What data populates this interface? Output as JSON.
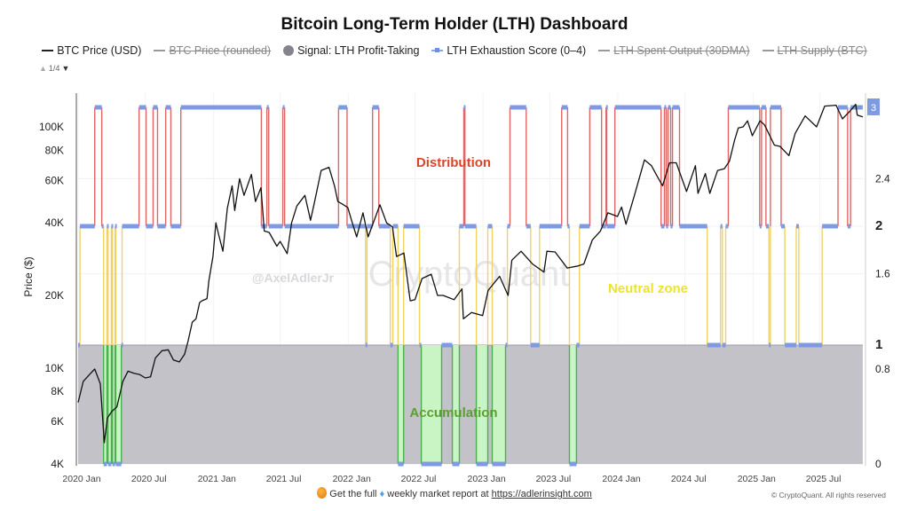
{
  "title": "Bitcoin Long-Term Holder (LTH) Dashboard",
  "legend": [
    {
      "label": "BTC Price (USD)",
      "marker": "line",
      "active": true
    },
    {
      "label": "BTC Price (rounded)",
      "marker": "line",
      "active": false
    },
    {
      "label": "Signal: LTH Profit-Taking",
      "marker": "circle",
      "active": true
    },
    {
      "label": "LTH Exhaustion Score (0–4)",
      "marker": "line-square",
      "active": true
    },
    {
      "label": "LTH Spent Output (30DMA)",
      "marker": "line",
      "active": false
    },
    {
      "label": "LTH Supply (BTC)",
      "marker": "line",
      "active": false
    }
  ],
  "legend_pager": {
    "up": "▲",
    "page": "1/4",
    "down": "▼"
  },
  "footer": {
    "text1": "Get the full",
    "text2": "weekly market report at",
    "link": "https://adlerinsight.com",
    "copyright": "© CryptoQuant. All rights reserved"
  },
  "colors": {
    "price": "#111111",
    "score": "#7d9ae3",
    "distribution": "#e06666",
    "neutral": "#f0d264",
    "accumulation": "#4caf50",
    "accumulation_fill": "#c9f5c4",
    "signal_fill": "#c3c2c9",
    "current_badge": "#7d9ae3"
  },
  "chart_data": {
    "type": "line",
    "title": "Bitcoin Long-Term Holder (LTH) Dashboard",
    "ylabel": "Price ($)",
    "y_scale": "log",
    "ylim": [
      4000,
      130000
    ],
    "y_ticks": [
      {
        "v": 4000,
        "label": "4K"
      },
      {
        "v": 6000,
        "label": "6K"
      },
      {
        "v": 8000,
        "label": "8K"
      },
      {
        "v": 10000,
        "label": "10K"
      },
      {
        "v": 20000,
        "label": "20K"
      },
      {
        "v": 40000,
        "label": "40K"
      },
      {
        "v": 60000,
        "label": "60K"
      },
      {
        "v": 80000,
        "label": "80K"
      },
      {
        "v": 100000,
        "label": "100K"
      }
    ],
    "y2lim": [
      0,
      3.1
    ],
    "y2_ticks": [
      {
        "v": 0,
        "label": "0",
        "bold": false
      },
      {
        "v": 0.8,
        "label": "0.8",
        "bold": false
      },
      {
        "v": 1,
        "label": "1",
        "bold": true
      },
      {
        "v": 1.6,
        "label": "1.6",
        "bold": false
      },
      {
        "v": 2,
        "label": "2",
        "bold": true
      },
      {
        "v": 2.4,
        "label": "2.4",
        "bold": false
      }
    ],
    "y2_current": "3",
    "x_ticks": [
      {
        "d": "2020-01-01",
        "label": "2020 Jan"
      },
      {
        "d": "2020-07-01",
        "label": "2020 Jul"
      },
      {
        "d": "2021-01-01",
        "label": "2021 Jan"
      },
      {
        "d": "2021-07-01",
        "label": "2021 Jul"
      },
      {
        "d": "2022-01-01",
        "label": "2022 Jan"
      },
      {
        "d": "2022-07-01",
        "label": "2022 Jul"
      },
      {
        "d": "2023-01-01",
        "label": "2023 Jan"
      },
      {
        "d": "2023-07-01",
        "label": "2023 Jul"
      },
      {
        "d": "2024-01-01",
        "label": "2024 Jan"
      },
      {
        "d": "2024-07-01",
        "label": "2024 Jul"
      },
      {
        "d": "2025-01-01",
        "label": "2025 Jan"
      },
      {
        "d": "2025-07-01",
        "label": "2025 Jul"
      }
    ],
    "xlim": [
      "2020-01-01",
      "2025-10-25"
    ],
    "zone_labels": {
      "distribution": "Distribution",
      "neutral": "Neutral zone",
      "accumulation": "Accumulation"
    },
    "watermarks": {
      "author": "@AxelAdlerJr",
      "brand": "CryptoQuant"
    },
    "series": [
      {
        "name": "BTC Price (USD)",
        "axis": "left",
        "points": [
          [
            "2020-01-01",
            7200
          ],
          [
            "2020-01-15",
            8800
          ],
          [
            "2020-02-01",
            9400
          ],
          [
            "2020-02-15",
            9900
          ],
          [
            "2020-03-01",
            8600
          ],
          [
            "2020-03-12",
            4900
          ],
          [
            "2020-03-20",
            6200
          ],
          [
            "2020-04-01",
            6600
          ],
          [
            "2020-04-15",
            6900
          ],
          [
            "2020-05-01",
            8800
          ],
          [
            "2020-05-15",
            9700
          ],
          [
            "2020-06-01",
            9500
          ],
          [
            "2020-06-15",
            9400
          ],
          [
            "2020-07-01",
            9100
          ],
          [
            "2020-07-15",
            9200
          ],
          [
            "2020-07-28",
            11000
          ],
          [
            "2020-08-15",
            11800
          ],
          [
            "2020-09-01",
            11900
          ],
          [
            "2020-09-15",
            10800
          ],
          [
            "2020-10-01",
            10600
          ],
          [
            "2020-10-15",
            11400
          ],
          [
            "2020-10-25",
            13000
          ],
          [
            "2020-11-05",
            15500
          ],
          [
            "2020-11-15",
            16000
          ],
          [
            "2020-11-25",
            18700
          ],
          [
            "2020-12-01",
            19000
          ],
          [
            "2020-12-15",
            19400
          ],
          [
            "2020-12-20",
            23000
          ],
          [
            "2020-12-31",
            29000
          ],
          [
            "2021-01-08",
            40000
          ],
          [
            "2021-01-15",
            36000
          ],
          [
            "2021-01-27",
            30500
          ],
          [
            "2021-02-08",
            46000
          ],
          [
            "2021-02-21",
            57000
          ],
          [
            "2021-02-28",
            45000
          ],
          [
            "2021-03-13",
            61000
          ],
          [
            "2021-03-25",
            52000
          ],
          [
            "2021-04-14",
            63500
          ],
          [
            "2021-04-25",
            49000
          ],
          [
            "2021-05-10",
            56000
          ],
          [
            "2021-05-19",
            37000
          ],
          [
            "2021-06-01",
            36500
          ],
          [
            "2021-06-22",
            32000
          ],
          [
            "2021-07-01",
            33500
          ],
          [
            "2021-07-20",
            29800
          ],
          [
            "2021-08-01",
            40000
          ],
          [
            "2021-08-15",
            47000
          ],
          [
            "2021-09-06",
            52000
          ],
          [
            "2021-09-21",
            41000
          ],
          [
            "2021-10-01",
            48000
          ],
          [
            "2021-10-20",
            66000
          ],
          [
            "2021-11-10",
            68000
          ],
          [
            "2021-11-25",
            57000
          ],
          [
            "2021-12-04",
            49000
          ],
          [
            "2021-12-15",
            48000
          ],
          [
            "2021-12-31",
            46300
          ],
          [
            "2022-01-10",
            41000
          ],
          [
            "2022-01-24",
            35000
          ],
          [
            "2022-02-10",
            44000
          ],
          [
            "2022-02-24",
            35000
          ],
          [
            "2022-03-28",
            47500
          ],
          [
            "2022-04-15",
            40000
          ],
          [
            "2022-05-01",
            38500
          ],
          [
            "2022-05-12",
            29000
          ],
          [
            "2022-06-01",
            30000
          ],
          [
            "2022-06-18",
            19000
          ],
          [
            "2022-07-01",
            19200
          ],
          [
            "2022-07-20",
            23500
          ],
          [
            "2022-08-14",
            24500
          ],
          [
            "2022-08-31",
            20000
          ],
          [
            "2022-09-15",
            20000
          ],
          [
            "2022-10-15",
            19200
          ],
          [
            "2022-11-05",
            21300
          ],
          [
            "2022-11-09",
            16000
          ],
          [
            "2022-12-01",
            17000
          ],
          [
            "2022-12-31",
            16500
          ],
          [
            "2023-01-15",
            21000
          ],
          [
            "2023-02-15",
            24000
          ],
          [
            "2023-03-10",
            20000
          ],
          [
            "2023-03-20",
            28000
          ],
          [
            "2023-04-14",
            30500
          ],
          [
            "2023-05-15",
            27000
          ],
          [
            "2023-06-15",
            25000
          ],
          [
            "2023-06-23",
            30500
          ],
          [
            "2023-07-15",
            30300
          ],
          [
            "2023-08-17",
            26000
          ],
          [
            "2023-09-15",
            26500
          ],
          [
            "2023-10-01",
            27000
          ],
          [
            "2023-10-24",
            34000
          ],
          [
            "2023-11-15",
            37000
          ],
          [
            "2023-12-05",
            44000
          ],
          [
            "2023-12-31",
            42500
          ],
          [
            "2024-01-11",
            46500
          ],
          [
            "2024-01-23",
            39500
          ],
          [
            "2024-02-15",
            52000
          ],
          [
            "2024-03-13",
            73000
          ],
          [
            "2024-04-01",
            69000
          ],
          [
            "2024-04-15",
            63000
          ],
          [
            "2024-05-01",
            57000
          ],
          [
            "2024-05-20",
            71000
          ],
          [
            "2024-06-07",
            71000
          ],
          [
            "2024-07-05",
            54000
          ],
          [
            "2024-07-29",
            69000
          ],
          [
            "2024-08-05",
            53000
          ],
          [
            "2024-08-25",
            64000
          ],
          [
            "2024-09-06",
            53000
          ],
          [
            "2024-09-27",
            66000
          ],
          [
            "2024-10-15",
            67000
          ],
          [
            "2024-10-29",
            72000
          ],
          [
            "2024-11-12",
            88000
          ],
          [
            "2024-11-22",
            99000
          ],
          [
            "2024-12-05",
            100000
          ],
          [
            "2024-12-17",
            106000
          ],
          [
            "2024-12-30",
            92000
          ],
          [
            "2025-01-20",
            106000
          ],
          [
            "2025-02-01",
            102000
          ],
          [
            "2025-02-28",
            84000
          ],
          [
            "2025-03-15",
            83000
          ],
          [
            "2025-04-08",
            76000
          ],
          [
            "2025-04-25",
            94000
          ],
          [
            "2025-05-22",
            111000
          ],
          [
            "2025-06-22",
            100000
          ],
          [
            "2025-07-14",
            122000
          ],
          [
            "2025-08-14",
            123000
          ],
          [
            "2025-08-31",
            108000
          ],
          [
            "2025-09-20",
            116000
          ],
          [
            "2025-10-06",
            124000
          ],
          [
            "2025-10-10",
            112000
          ],
          [
            "2025-10-25",
            110000
          ]
        ]
      },
      {
        "name": "LTH Exhaustion Score (0–4)",
        "axis": "right",
        "step": true,
        "changes": [
          [
            "2020-01-01",
            1
          ],
          [
            "2020-01-06",
            2
          ],
          [
            "2020-02-15",
            3
          ],
          [
            "2020-03-05",
            2
          ],
          [
            "2020-03-10",
            0
          ],
          [
            "2020-03-19",
            2
          ],
          [
            "2020-03-22",
            0
          ],
          [
            "2020-03-31",
            2
          ],
          [
            "2020-04-03",
            0
          ],
          [
            "2020-04-10",
            2
          ],
          [
            "2020-04-12",
            0
          ],
          [
            "2020-04-27",
            1
          ],
          [
            "2020-04-29",
            2
          ],
          [
            "2020-06-14",
            3
          ],
          [
            "2020-07-03",
            2
          ],
          [
            "2020-07-22",
            3
          ],
          [
            "2020-08-03",
            2
          ],
          [
            "2020-08-25",
            3
          ],
          [
            "2020-09-08",
            2
          ],
          [
            "2020-10-05",
            3
          ],
          [
            "2021-05-11",
            2
          ],
          [
            "2021-05-26",
            3
          ],
          [
            "2021-05-31",
            2
          ],
          [
            "2021-07-08",
            3
          ],
          [
            "2021-07-13",
            2
          ],
          [
            "2021-12-06",
            3
          ],
          [
            "2021-12-29",
            2
          ],
          [
            "2022-02-17",
            1
          ],
          [
            "2022-02-21",
            2
          ],
          [
            "2022-03-08",
            3
          ],
          [
            "2022-03-25",
            2
          ],
          [
            "2022-04-25",
            1
          ],
          [
            "2022-05-02",
            2
          ],
          [
            "2022-05-16",
            0
          ],
          [
            "2022-05-31",
            2
          ],
          [
            "2022-07-13",
            1
          ],
          [
            "2022-07-18",
            0
          ],
          [
            "2022-09-11",
            1
          ],
          [
            "2022-10-10",
            0
          ],
          [
            "2022-10-29",
            2
          ],
          [
            "2022-11-10",
            3
          ],
          [
            "2022-11-13",
            2
          ],
          [
            "2022-12-14",
            0
          ],
          [
            "2023-01-14",
            2
          ],
          [
            "2023-01-26",
            0
          ],
          [
            "2023-03-03",
            1
          ],
          [
            "2023-03-08",
            2
          ],
          [
            "2023-03-15",
            3
          ],
          [
            "2023-04-28",
            2
          ],
          [
            "2023-05-10",
            1
          ],
          [
            "2023-06-03",
            2
          ],
          [
            "2023-08-02",
            3
          ],
          [
            "2023-08-18",
            2
          ],
          [
            "2023-08-23",
            0
          ],
          [
            "2023-09-11",
            1
          ],
          [
            "2023-09-19",
            2
          ],
          [
            "2023-10-17",
            3
          ],
          [
            "2023-11-18",
            2
          ],
          [
            "2023-11-30",
            3
          ],
          [
            "2023-12-02",
            2
          ],
          [
            "2023-12-24",
            3
          ],
          [
            "2024-04-27",
            2
          ],
          [
            "2024-05-06",
            3
          ],
          [
            "2024-05-11",
            2
          ],
          [
            "2024-05-16",
            3
          ],
          [
            "2024-05-23",
            2
          ],
          [
            "2024-05-28",
            3
          ],
          [
            "2024-06-16",
            2
          ],
          [
            "2024-08-30",
            1
          ],
          [
            "2024-10-05",
            2
          ],
          [
            "2024-10-10",
            1
          ],
          [
            "2024-10-19",
            2
          ],
          [
            "2024-10-26",
            3
          ],
          [
            "2025-01-19",
            2
          ],
          [
            "2025-01-24",
            3
          ],
          [
            "2025-02-05",
            2
          ],
          [
            "2025-02-13",
            1
          ],
          [
            "2025-02-17",
            3
          ],
          [
            "2025-03-18",
            2
          ],
          [
            "2025-03-28",
            1
          ],
          [
            "2025-04-28",
            2
          ],
          [
            "2025-05-05",
            1
          ],
          [
            "2025-07-07",
            2
          ],
          [
            "2025-08-19",
            3
          ],
          [
            "2025-09-14",
            2
          ],
          [
            "2025-09-22",
            3
          ],
          [
            "2025-10-25",
            3
          ]
        ]
      }
    ]
  }
}
